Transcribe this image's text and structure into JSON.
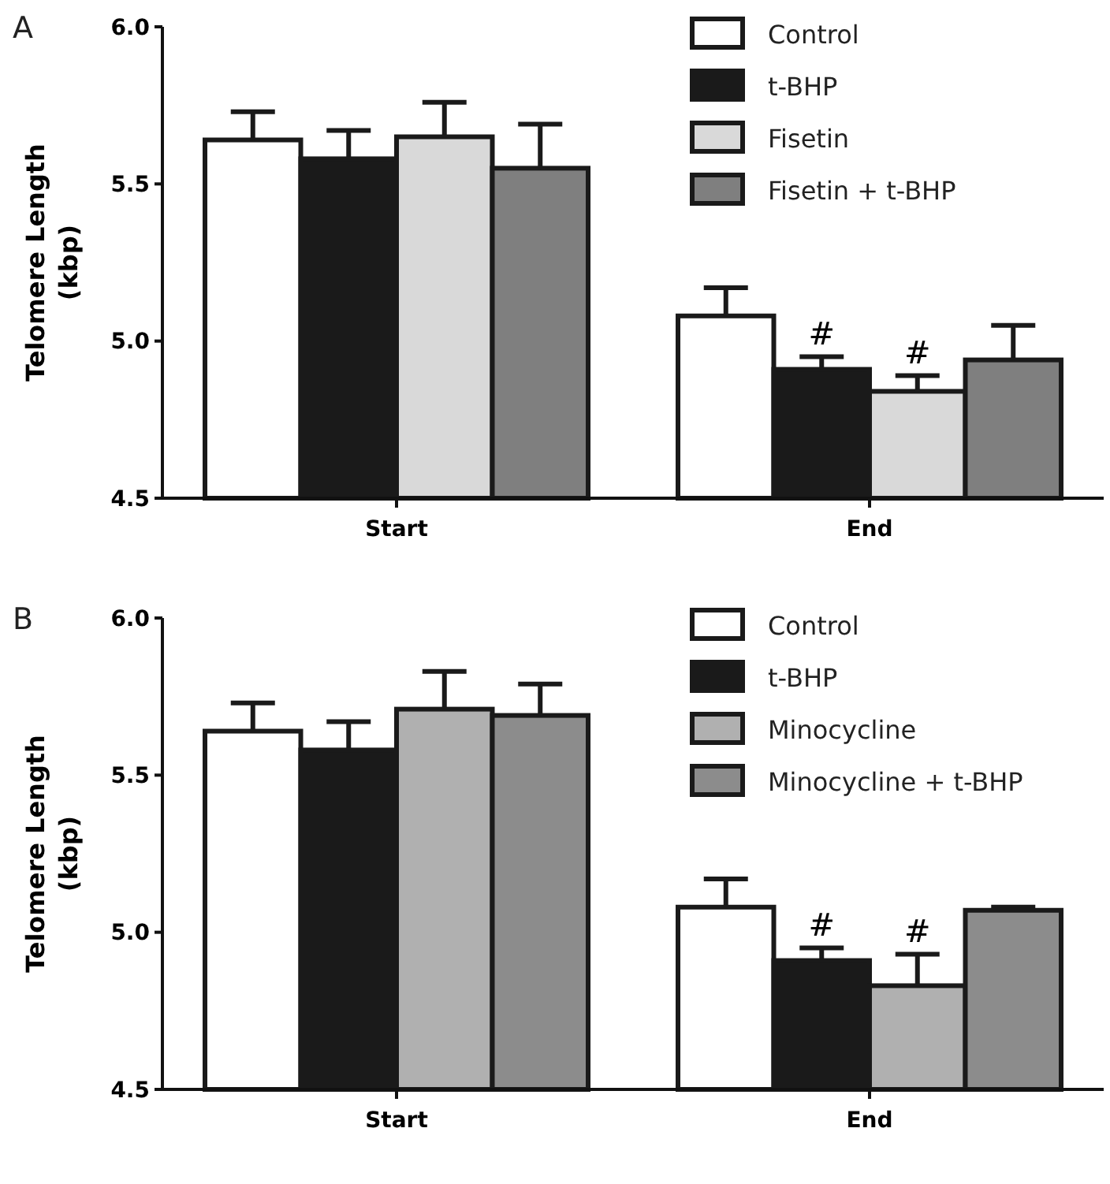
{
  "chart_data": [
    {
      "type": "bar",
      "title": "A",
      "ylabel": "Telomere Length (kbp)",
      "categories": [
        "Start",
        "End"
      ],
      "series": [
        {
          "name": "Control",
          "color": "#ffffff",
          "values": [
            5.64,
            5.08
          ],
          "errors": [
            0.09,
            0.09
          ]
        },
        {
          "name": "t-BHP",
          "color": "#1a1a1a",
          "values": [
            5.58,
            4.91
          ],
          "errors": [
            0.09,
            0.04
          ]
        },
        {
          "name": "Fisetin",
          "color": "#d9d9d9",
          "values": [
            5.65,
            4.84
          ],
          "errors": [
            0.11,
            0.05
          ]
        },
        {
          "name": "Fisetin + t-BHP",
          "color": "#7f7f7f",
          "values": [
            5.55,
            4.94
          ],
          "errors": [
            0.14,
            0.11
          ]
        }
      ],
      "ylim": [
        4.5,
        6.0
      ],
      "yticks": [
        {
          "value": 4.5,
          "label": "4.5"
        },
        {
          "value": 5.0,
          "label": "5.0"
        },
        {
          "value": 5.5,
          "label": "5.5"
        },
        {
          "value": 6.0,
          "label": "6.0"
        }
      ],
      "legend": "top right",
      "grid": false,
      "annotations": [
        "#",
        "#"
      ]
    },
    {
      "type": "bar",
      "title": "B",
      "ylabel": "Telomere Length (kbp)",
      "categories": [
        "Start",
        "End"
      ],
      "series": [
        {
          "name": "Control",
          "color": "#ffffff",
          "values": [
            5.64,
            5.08
          ],
          "errors": [
            0.09,
            0.09
          ]
        },
        {
          "name": "t-BHP",
          "color": "#1a1a1a",
          "values": [
            5.58,
            4.91
          ],
          "errors": [
            0.09,
            0.04
          ]
        },
        {
          "name": "Minocycline",
          "color": "#b0b0b0",
          "values": [
            5.71,
            4.83
          ],
          "errors": [
            0.12,
            0.1
          ]
        },
        {
          "name": "Minocycline + t-BHP",
          "color": "#8c8c8c",
          "values": [
            5.69,
            5.07
          ],
          "errors": [
            0.1,
            0.01
          ]
        }
      ],
      "ylim": [
        4.5,
        6.0
      ],
      "yticks": [
        {
          "value": 4.5,
          "label": "4.5"
        },
        {
          "value": 5.0,
          "label": "5.0"
        },
        {
          "value": 5.5,
          "label": "5.5"
        },
        {
          "value": 6.0,
          "label": "6.0"
        }
      ],
      "legend": "top right",
      "grid": false,
      "annotations": [
        "#",
        "#"
      ]
    }
  ]
}
